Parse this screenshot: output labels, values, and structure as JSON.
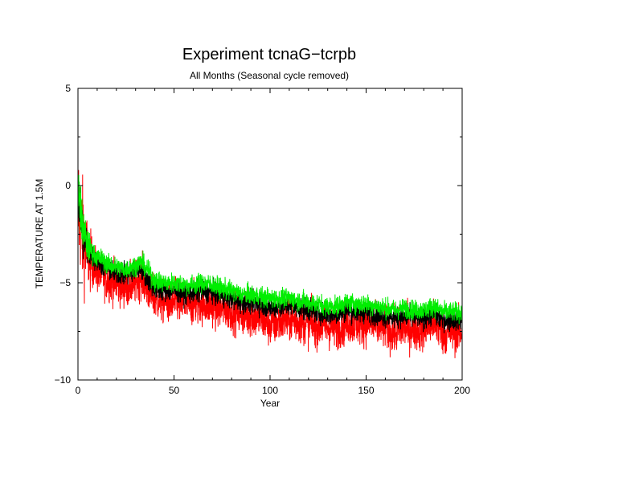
{
  "chart_data": {
    "type": "line",
    "title": "Experiment tcnaG−tcrpb",
    "subtitle": "All Months (Seasonal cycle removed)",
    "xlabel": "Year",
    "ylabel": "TEMPERATURE AT 1.5M",
    "xlim": [
      0,
      200
    ],
    "ylim": [
      -10,
      5
    ],
    "x_ticks": [
      0,
      50,
      100,
      150,
      200
    ],
    "x_tick_labels": [
      "0",
      "50",
      "100",
      "150",
      "200"
    ],
    "y_ticks": [
      -10,
      -5,
      0,
      5
    ],
    "y_tick_labels": [
      "−10",
      "−5",
      "0",
      "5"
    ],
    "grid": false,
    "legend": "none",
    "series": [
      {
        "color": "#ff0000",
        "noise": 0.55,
        "x": [
          0,
          1,
          2,
          3,
          5,
          8,
          10,
          13,
          15,
          20,
          25,
          30,
          33,
          35,
          38,
          40,
          45,
          50,
          55,
          60,
          65,
          70,
          75,
          80,
          85,
          90,
          95,
          100,
          105,
          110,
          115,
          120,
          125,
          130,
          135,
          140,
          145,
          150,
          155,
          160,
          165,
          170,
          175,
          180,
          185,
          190,
          195,
          200
        ],
        "values": [
          -1.0,
          -1.5,
          -2.2,
          -2.8,
          -3.6,
          -4.1,
          -4.4,
          -4.6,
          -4.8,
          -5.0,
          -5.2,
          -5.0,
          -4.6,
          -5.1,
          -5.6,
          -5.8,
          -6.0,
          -6.0,
          -6.1,
          -6.1,
          -6.0,
          -6.2,
          -6.3,
          -6.4,
          -6.6,
          -6.7,
          -6.8,
          -7.2,
          -7.0,
          -6.9,
          -7.0,
          -7.1,
          -7.2,
          -7.3,
          -7.3,
          -7.0,
          -7.1,
          -7.1,
          -7.2,
          -7.3,
          -7.6,
          -7.3,
          -7.4,
          -7.4,
          -7.0,
          -7.6,
          -7.5,
          -7.5
        ]
      },
      {
        "color": "#000000",
        "noise": 0.28,
        "x": [
          0,
          1,
          2,
          3,
          5,
          8,
          10,
          13,
          15,
          20,
          25,
          30,
          33,
          35,
          38,
          40,
          45,
          50,
          55,
          60,
          65,
          70,
          75,
          80,
          85,
          90,
          95,
          100,
          105,
          110,
          115,
          120,
          125,
          130,
          135,
          140,
          145,
          150,
          155,
          160,
          165,
          170,
          175,
          180,
          185,
          190,
          195,
          200
        ],
        "values": [
          -0.6,
          -1.3,
          -2.0,
          -2.6,
          -3.3,
          -3.7,
          -3.9,
          -4.1,
          -4.3,
          -4.5,
          -4.6,
          -4.4,
          -4.2,
          -4.6,
          -5.1,
          -5.3,
          -5.4,
          -5.4,
          -5.5,
          -5.5,
          -5.4,
          -5.5,
          -5.7,
          -5.8,
          -6.0,
          -6.0,
          -6.1,
          -6.3,
          -6.2,
          -6.2,
          -6.3,
          -6.4,
          -6.5,
          -6.6,
          -6.6,
          -6.4,
          -6.5,
          -6.5,
          -6.6,
          -6.7,
          -6.8,
          -6.7,
          -6.8,
          -6.8,
          -6.6,
          -6.9,
          -6.9,
          -6.9
        ]
      },
      {
        "color": "#00ee00",
        "noise": 0.25,
        "x": [
          0,
          1,
          2,
          3,
          5,
          8,
          10,
          13,
          15,
          20,
          25,
          30,
          33,
          35,
          38,
          40,
          45,
          50,
          55,
          60,
          65,
          70,
          75,
          80,
          85,
          90,
          95,
          100,
          105,
          110,
          115,
          120,
          125,
          130,
          135,
          140,
          145,
          150,
          155,
          160,
          165,
          170,
          175,
          180,
          185,
          190,
          195,
          200
        ],
        "values": [
          -0.3,
          -0.9,
          -1.8,
          -2.4,
          -3.1,
          -3.5,
          -3.7,
          -3.8,
          -4.0,
          -4.2,
          -4.3,
          -4.1,
          -3.9,
          -4.2,
          -4.6,
          -4.9,
          -5.0,
          -5.0,
          -5.1,
          -5.1,
          -5.0,
          -5.1,
          -5.3,
          -5.4,
          -5.6,
          -5.6,
          -5.7,
          -5.8,
          -5.8,
          -5.8,
          -5.9,
          -6.0,
          -6.1,
          -6.2,
          -6.2,
          -6.0,
          -6.1,
          -6.1,
          -6.2,
          -6.3,
          -6.4,
          -6.3,
          -6.4,
          -6.4,
          -6.2,
          -6.5,
          -6.5,
          -6.5
        ]
      }
    ]
  }
}
